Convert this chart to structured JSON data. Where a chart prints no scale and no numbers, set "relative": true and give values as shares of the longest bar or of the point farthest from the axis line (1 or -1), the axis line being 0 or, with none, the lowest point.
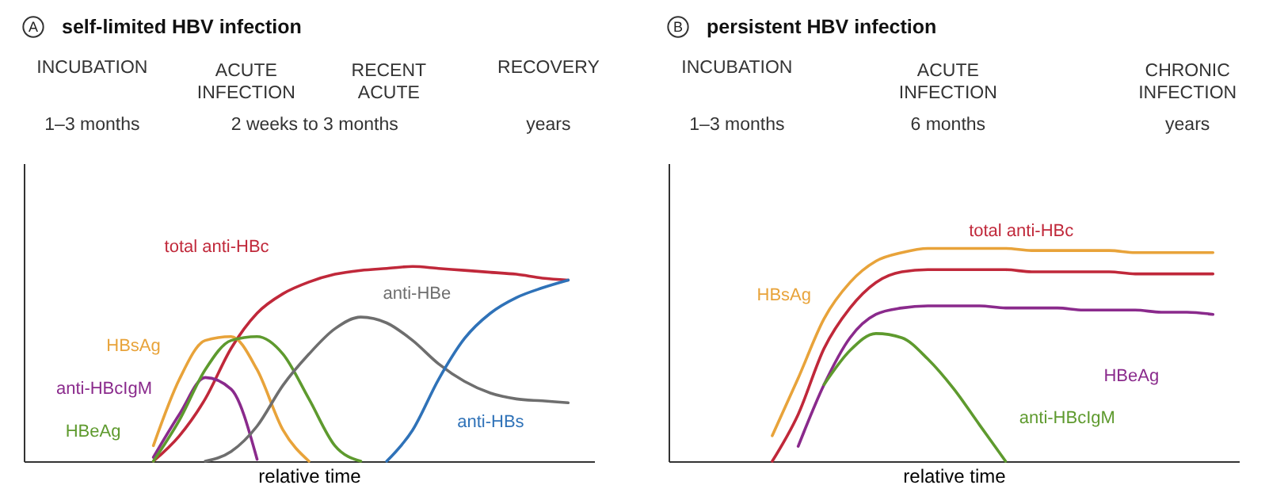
{
  "chart_data": [
    {
      "type": "line",
      "title": "self-limited HBV infection",
      "xlabel": "relative time",
      "relative": true,
      "annotations": [
        "A",
        "INCUBATION",
        "ACUTE\nINFECTION",
        "RECENT\nACUTE",
        "RECOVERY",
        "1–3 months",
        "2 weeks to 3 months",
        "years"
      ],
      "categories": [
        null,
        null,
        null,
        null,
        null,
        null,
        null,
        null,
        null,
        null,
        null,
        null,
        null,
        null,
        null,
        null,
        null,
        null,
        null,
        null,
        null,
        null,
        null
      ],
      "series": [
        {
          "name": "total anti-HBc",
          "color": "#c0283a",
          "values": [
            null,
            null,
            null,
            null,
            null,
            0,
            0.13,
            0.32,
            0.58,
            0.76,
            0.86,
            0.92,
            0.96,
            0.98,
            0.99,
            1.0,
            0.99,
            0.98,
            0.97,
            0.96,
            0.94,
            0.93,
            null
          ]
        },
        {
          "name": "HBsAg",
          "color": "#e8a33a",
          "values": [
            null,
            null,
            null,
            null,
            null,
            0.08,
            0.42,
            0.62,
            0.64,
            0.47,
            0.16,
            0,
            null,
            null,
            null,
            null,
            null,
            null,
            null,
            null,
            null,
            null,
            null
          ]
        },
        {
          "name": "anti-HBcIgM",
          "color": "#8a2a8c",
          "values": [
            null,
            null,
            null,
            null,
            null,
            0.02,
            0.24,
            0.43,
            0.37,
            0.01,
            null,
            null,
            null,
            null,
            null,
            null,
            null,
            null,
            null,
            null,
            null,
            null,
            null
          ]
        },
        {
          "name": "HBeAg",
          "color": "#5e9a2e",
          "values": [
            null,
            null,
            null,
            null,
            null,
            0,
            0.21,
            0.47,
            0.62,
            0.64,
            0.55,
            0.32,
            0.08,
            0,
            null,
            null,
            null,
            null,
            null,
            null,
            null,
            null,
            null
          ]
        },
        {
          "name": "anti-HBe",
          "color": "#6e6e6e",
          "values": [
            null,
            null,
            null,
            null,
            null,
            null,
            null,
            0,
            0.05,
            0.18,
            0.39,
            0.55,
            0.68,
            0.74,
            0.71,
            0.62,
            0.5,
            0.41,
            0.35,
            0.32,
            0.31,
            0.3,
            null
          ]
        },
        {
          "name": "anti-HBs",
          "color": "#2f72b8",
          "values": [
            null,
            null,
            null,
            null,
            null,
            null,
            null,
            null,
            null,
            null,
            null,
            null,
            null,
            null,
            0,
            0.16,
            0.42,
            0.63,
            0.76,
            0.84,
            0.89,
            0.93,
            null
          ]
        }
      ]
    },
    {
      "type": "line",
      "title": "persistent HBV infection",
      "xlabel": "relative time",
      "relative": true,
      "annotations": [
        "B",
        "INCUBATION",
        "ACUTE\nINFECTION",
        "CHRONIC\nINFECTION",
        "1–3 months",
        "6 months",
        "years"
      ],
      "categories": [
        null,
        null,
        null,
        null,
        null,
        null,
        null,
        null,
        null,
        null,
        null,
        null,
        null,
        null,
        null,
        null,
        null,
        null,
        null,
        null,
        null,
        null,
        null
      ],
      "series": [
        {
          "name": "HBsAg",
          "color": "#e8a33a",
          "values": [
            null,
            null,
            null,
            null,
            0.12,
            0.39,
            0.67,
            0.84,
            0.94,
            0.98,
            1.0,
            1.0,
            1.0,
            1.0,
            0.99,
            0.99,
            0.99,
            0.99,
            0.98,
            0.98,
            0.98,
            0.98,
            null
          ]
        },
        {
          "name": "total anti-HBc",
          "color": "#c0283a",
          "values": [
            null,
            null,
            null,
            null,
            0,
            0.22,
            0.53,
            0.72,
            0.84,
            0.89,
            0.9,
            0.9,
            0.9,
            0.9,
            0.89,
            0.89,
            0.89,
            0.89,
            0.88,
            0.88,
            0.88,
            0.88,
            null
          ]
        },
        {
          "name": "HBeAg",
          "color": "#8a2a8c",
          "values": [
            null,
            null,
            null,
            null,
            null,
            0.07,
            0.36,
            0.58,
            0.69,
            0.72,
            0.73,
            0.73,
            0.73,
            0.72,
            0.72,
            0.72,
            0.71,
            0.71,
            0.71,
            0.7,
            0.7,
            0.69,
            null
          ]
        },
        {
          "name": "anti-HBcIgM",
          "color": "#5e9a2e",
          "values": [
            null,
            null,
            null,
            null,
            null,
            null,
            0.36,
            0.52,
            0.6,
            0.58,
            0.48,
            0.34,
            0.17,
            0,
            null,
            null,
            null,
            null,
            null,
            null,
            null,
            null,
            null
          ]
        }
      ]
    }
  ]
}
